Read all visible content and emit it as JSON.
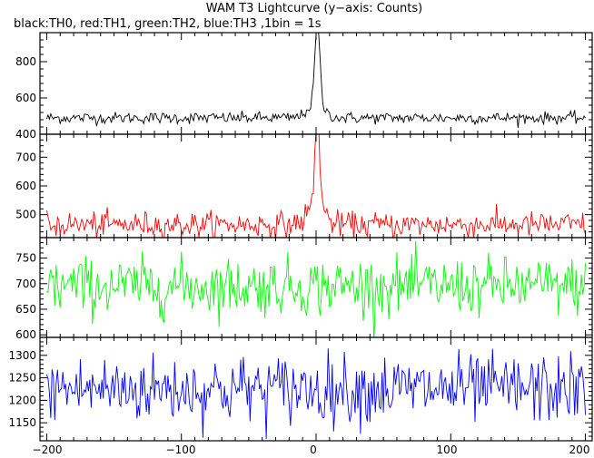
{
  "title": "WAM T3 Lightcurve (y−axis: Counts)",
  "subtitle": "black:TH0, red:TH1, green:TH2, blue:TH3 ,1bin = 1s",
  "chart_data": [
    {
      "type": "line",
      "series_label": "TH0",
      "color": "#000000",
      "xlim": [
        -205,
        205
      ],
      "ylim": [
        400,
        960
      ],
      "x_ticks": [
        -200,
        -100,
        0,
        100,
        200
      ],
      "y_ticks": [
        400,
        600,
        800
      ],
      "y_tick_labels": [
        "400",
        "600",
        "800"
      ],
      "baseline": 490,
      "noise": 16,
      "peak": {
        "x": 1,
        "height": 440,
        "width": 1.8
      },
      "shoulder": {
        "x": 0,
        "height": 80,
        "width": 6
      },
      "grid": false
    },
    {
      "type": "line",
      "series_label": "TH1",
      "color": "#ff0000",
      "xlim": [
        -205,
        205
      ],
      "ylim": [
        420,
        780
      ],
      "x_ticks": [
        -200,
        -100,
        0,
        100,
        200
      ],
      "y_ticks": [
        500,
        600,
        700
      ],
      "y_tick_labels": [
        "500",
        "600",
        "700"
      ],
      "baseline": 465,
      "noise": 22,
      "peak": {
        "x": 1,
        "height": 300,
        "width": 1.8
      },
      "shoulder": {
        "x": 0,
        "height": 70,
        "width": 6
      },
      "grid": false
    },
    {
      "type": "line",
      "series_label": "TH2",
      "color": "#00ff00",
      "xlim": [
        -205,
        205
      ],
      "ylim": [
        595,
        790
      ],
      "x_ticks": [
        -200,
        -100,
        0,
        100,
        200
      ],
      "y_ticks": [
        600,
        650,
        700,
        750
      ],
      "y_tick_labels": [
        "600",
        "650",
        "700",
        "750"
      ],
      "baseline": 695,
      "noise": 28,
      "peak": null,
      "shoulder": null,
      "grid": false
    },
    {
      "type": "line",
      "series_label": "TH3",
      "color": "#0000ff",
      "xlim": [
        -205,
        205
      ],
      "ylim": [
        1110,
        1340
      ],
      "x_ticks": [
        -200,
        -100,
        0,
        100,
        200
      ],
      "y_ticks": [
        1150,
        1200,
        1250,
        1300
      ],
      "y_tick_labels": [
        "1150",
        "1200",
        "1250",
        "1300"
      ],
      "baseline": 1225,
      "noise": 38,
      "peak": null,
      "shoulder": null,
      "grid": false
    }
  ],
  "x_tick_labels": [
    "−200",
    "−100",
    "0",
    "100",
    "200"
  ]
}
